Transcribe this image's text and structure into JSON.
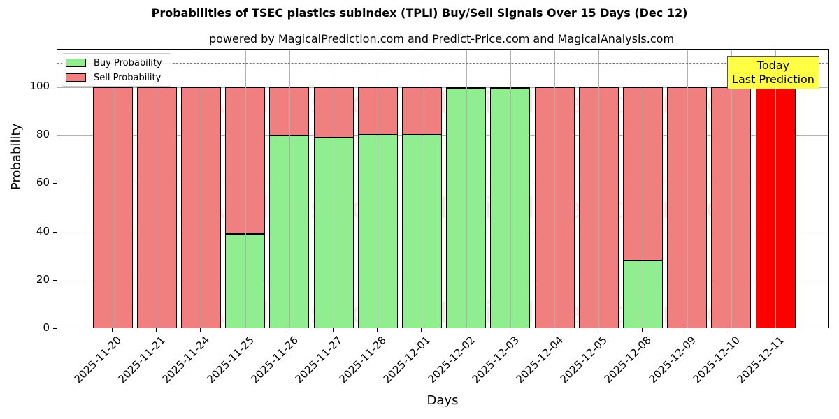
{
  "chart_data": {
    "type": "bar",
    "stacked": true,
    "title": "Probabilities of TSEC plastics subindex (TPLI) Buy/Sell Signals Over 15 Days (Dec 12)",
    "subtitle": "powered by MagicalPrediction.com and Predict-Price.com and MagicalAnalysis.com",
    "xlabel": "Days",
    "ylabel": "Probability",
    "ylim": [
      0,
      115
    ],
    "yticks": [
      0,
      20,
      40,
      60,
      80,
      100
    ],
    "grid": true,
    "legend_position": "upper left",
    "reference_line": {
      "y": 110,
      "style": "dashed",
      "color": "#777777"
    },
    "categories": [
      "2025-11-20",
      "2025-11-21",
      "2025-11-24",
      "2025-11-25",
      "2025-11-26",
      "2025-11-27",
      "2025-11-28",
      "2025-12-01",
      "2025-12-02",
      "2025-12-03",
      "2025-12-04",
      "2025-12-05",
      "2025-12-08",
      "2025-12-09",
      "2025-12-10",
      "2025-12-11"
    ],
    "series": [
      {
        "name": "Buy Probability",
        "color": "#90ee90",
        "values": [
          0,
          0,
          0,
          39.3,
          80.0,
          79.2,
          80.3,
          80.3,
          99.8,
          99.8,
          0,
          0,
          28.3,
          0,
          0,
          0
        ]
      },
      {
        "name": "Sell Probability",
        "color": "#f08080",
        "values": [
          100,
          100,
          100,
          60.7,
          20.0,
          20.8,
          19.7,
          19.7,
          0.2,
          0.2,
          100,
          100,
          71.7,
          100,
          100,
          100
        ]
      }
    ],
    "highlight": {
      "index": 15,
      "color": "#ff0000",
      "label": "Today\nLast Prediction"
    },
    "annotation": {
      "line1": "Today",
      "line2": "Last Prediction",
      "background": "#ffff44"
    }
  },
  "legend": {
    "buy_label": "Buy Probability",
    "sell_label": "Sell Probability"
  },
  "watermarks": [
    "MagicalAnalysis.com",
    "MagicalPrediction.com"
  ]
}
